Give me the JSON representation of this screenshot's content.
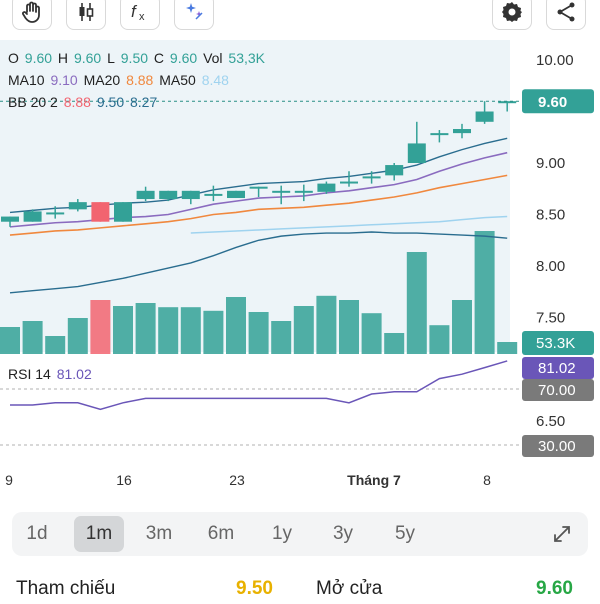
{
  "toolbar": {
    "left_icons": [
      "hand-icon",
      "candlestick-icon",
      "fx-icon",
      "sparkle-icon"
    ],
    "right_icons": [
      "gear-icon",
      "share-icon"
    ]
  },
  "ohlc": {
    "o_label": "O",
    "o_value": "9.60",
    "h_label": "H",
    "h_value": "9.60",
    "l_label": "L",
    "l_value": "9.50",
    "c_label": "C",
    "c_value": "9.60",
    "vol_label": "Vol",
    "vol_value": "53,3K"
  },
  "ma": {
    "ma10_label": "MA10",
    "ma10_value": "9.10",
    "ma20_label": "MA20",
    "ma20_value": "8.88",
    "ma50_label": "MA50",
    "ma50_value": "8.48"
  },
  "bb": {
    "label": "BB 20 2",
    "upper": "8.88",
    "middle": "9.50",
    "lower": "8.27"
  },
  "rsi": {
    "label": "RSI 14",
    "value": "81.02"
  },
  "price_axis": {
    "ticks": [
      "10.00",
      "9.00",
      "8.50",
      "8.00",
      "7.50",
      "6.50"
    ],
    "current_price": "9.60",
    "volume_badge": "53.3K",
    "rsi_badge": "81.02",
    "rsi_upper": "70.00",
    "rsi_lower": "30.00"
  },
  "x_axis": {
    "labels": [
      "9",
      "16",
      "23",
      "Tháng 7",
      "8"
    ]
  },
  "ranges": {
    "items": [
      "1d",
      "1m",
      "3m",
      "6m",
      "1y",
      "3y",
      "5y"
    ],
    "selected": "1m"
  },
  "bottom": {
    "ref_label": "Tham chiếu",
    "ref_value": "9.50",
    "open_label": "Mở cửa",
    "open_value": "9.60"
  },
  "colors": {
    "up": "#33a197",
    "down": "#f26470",
    "ma10": "#8a6bbf",
    "ma20": "#f0883e",
    "ma50": "#9fd3ef",
    "bb": "#2a6d8f",
    "rsi": "#6a56b8",
    "yellow": "#e8b100",
    "green": "#27a745"
  },
  "chart_data": {
    "type": "candlestick",
    "x": [
      "1",
      "2",
      "3",
      "4",
      "5",
      "6",
      "7",
      "8",
      "9",
      "10",
      "11",
      "12",
      "13",
      "14",
      "15",
      "16",
      "17",
      "18",
      "19",
      "20",
      "21",
      "22",
      "23"
    ],
    "candles": [
      {
        "o": 8.43,
        "h": 8.48,
        "l": 8.38,
        "c": 8.48
      },
      {
        "o": 8.43,
        "h": 8.55,
        "l": 8.43,
        "c": 8.53
      },
      {
        "o": 8.52,
        "h": 8.58,
        "l": 8.46,
        "c": 8.52
      },
      {
        "o": 8.55,
        "h": 8.65,
        "l": 8.53,
        "c": 8.62
      },
      {
        "o": 8.62,
        "h": 8.62,
        "l": 8.43,
        "c": 8.43
      },
      {
        "o": 8.43,
        "h": 8.62,
        "l": 8.43,
        "c": 8.62
      },
      {
        "o": 8.65,
        "h": 8.77,
        "l": 8.63,
        "c": 8.73
      },
      {
        "o": 8.65,
        "h": 8.73,
        "l": 8.63,
        "c": 8.73
      },
      {
        "o": 8.65,
        "h": 8.73,
        "l": 8.6,
        "c": 8.73
      },
      {
        "o": 8.7,
        "h": 8.78,
        "l": 8.63,
        "c": 8.7
      },
      {
        "o": 8.66,
        "h": 8.73,
        "l": 8.66,
        "c": 8.73
      },
      {
        "o": 8.77,
        "h": 8.77,
        "l": 8.67,
        "c": 8.77
      },
      {
        "o": 8.73,
        "h": 8.78,
        "l": 8.6,
        "c": 8.73
      },
      {
        "o": 8.73,
        "h": 8.79,
        "l": 8.63,
        "c": 8.73
      },
      {
        "o": 8.72,
        "h": 8.82,
        "l": 8.7,
        "c": 8.8
      },
      {
        "o": 8.82,
        "h": 8.92,
        "l": 8.77,
        "c": 8.82
      },
      {
        "o": 8.87,
        "h": 8.92,
        "l": 8.8,
        "c": 8.87
      },
      {
        "o": 8.88,
        "h": 9.0,
        "l": 8.83,
        "c": 8.98
      },
      {
        "o": 9.0,
        "h": 9.4,
        "l": 9.0,
        "c": 9.19
      },
      {
        "o": 9.29,
        "h": 9.32,
        "l": 9.2,
        "c": 9.29
      },
      {
        "o": 9.29,
        "h": 9.38,
        "l": 9.24,
        "c": 9.33
      },
      {
        "o": 9.4,
        "h": 9.6,
        "l": 9.38,
        "c": 9.5
      },
      {
        "o": 9.6,
        "h": 9.6,
        "l": 9.5,
        "c": 9.6
      }
    ],
    "ma10": [
      8.38,
      8.4,
      8.42,
      8.43,
      8.45,
      8.47,
      8.48,
      8.5,
      8.55,
      8.6,
      8.63,
      8.66,
      8.67,
      8.68,
      8.71,
      8.73,
      8.76,
      8.79,
      8.84,
      8.92,
      8.99,
      9.05,
      9.1
    ],
    "ma20": [
      8.3,
      8.32,
      8.34,
      8.35,
      8.37,
      8.39,
      8.41,
      8.43,
      8.46,
      8.5,
      8.52,
      8.55,
      8.56,
      8.57,
      8.59,
      8.61,
      8.64,
      8.67,
      8.71,
      8.76,
      8.8,
      8.84,
      8.88
    ],
    "ma50": [
      null,
      null,
      null,
      null,
      null,
      null,
      null,
      null,
      8.32,
      8.33,
      8.34,
      8.35,
      8.36,
      8.37,
      8.38,
      8.39,
      8.4,
      8.41,
      8.42,
      8.43,
      8.45,
      8.47,
      8.48
    ],
    "bb_lower": [
      7.74,
      7.76,
      7.78,
      7.8,
      7.84,
      7.88,
      7.93,
      7.98,
      8.03,
      8.1,
      8.18,
      8.25,
      8.29,
      8.31,
      8.32,
      8.32,
      8.33,
      8.32,
      8.32,
      8.31,
      8.3,
      8.29,
      8.27
    ],
    "volume": [
      0.45,
      0.55,
      0.3,
      0.6,
      0.9,
      0.8,
      0.85,
      0.78,
      0.78,
      0.72,
      0.95,
      0.7,
      0.55,
      0.8,
      0.97,
      0.9,
      0.68,
      0.35,
      1.7,
      0.48,
      0.9,
      2.05,
      0.2
    ],
    "rsi": [
      61,
      61,
      62,
      62,
      59,
      62,
      64,
      64,
      64,
      64,
      64,
      64,
      64,
      64,
      64,
      62,
      66,
      67,
      67,
      73,
      75,
      78,
      81.02
    ],
    "price_ticks": [
      10.0,
      9.0,
      8.5,
      8.0,
      7.5,
      6.5
    ],
    "rsi_levels": [
      70,
      30
    ],
    "x_ticks": [
      "9",
      "16",
      "23",
      "Tháng 7",
      "8"
    ]
  }
}
